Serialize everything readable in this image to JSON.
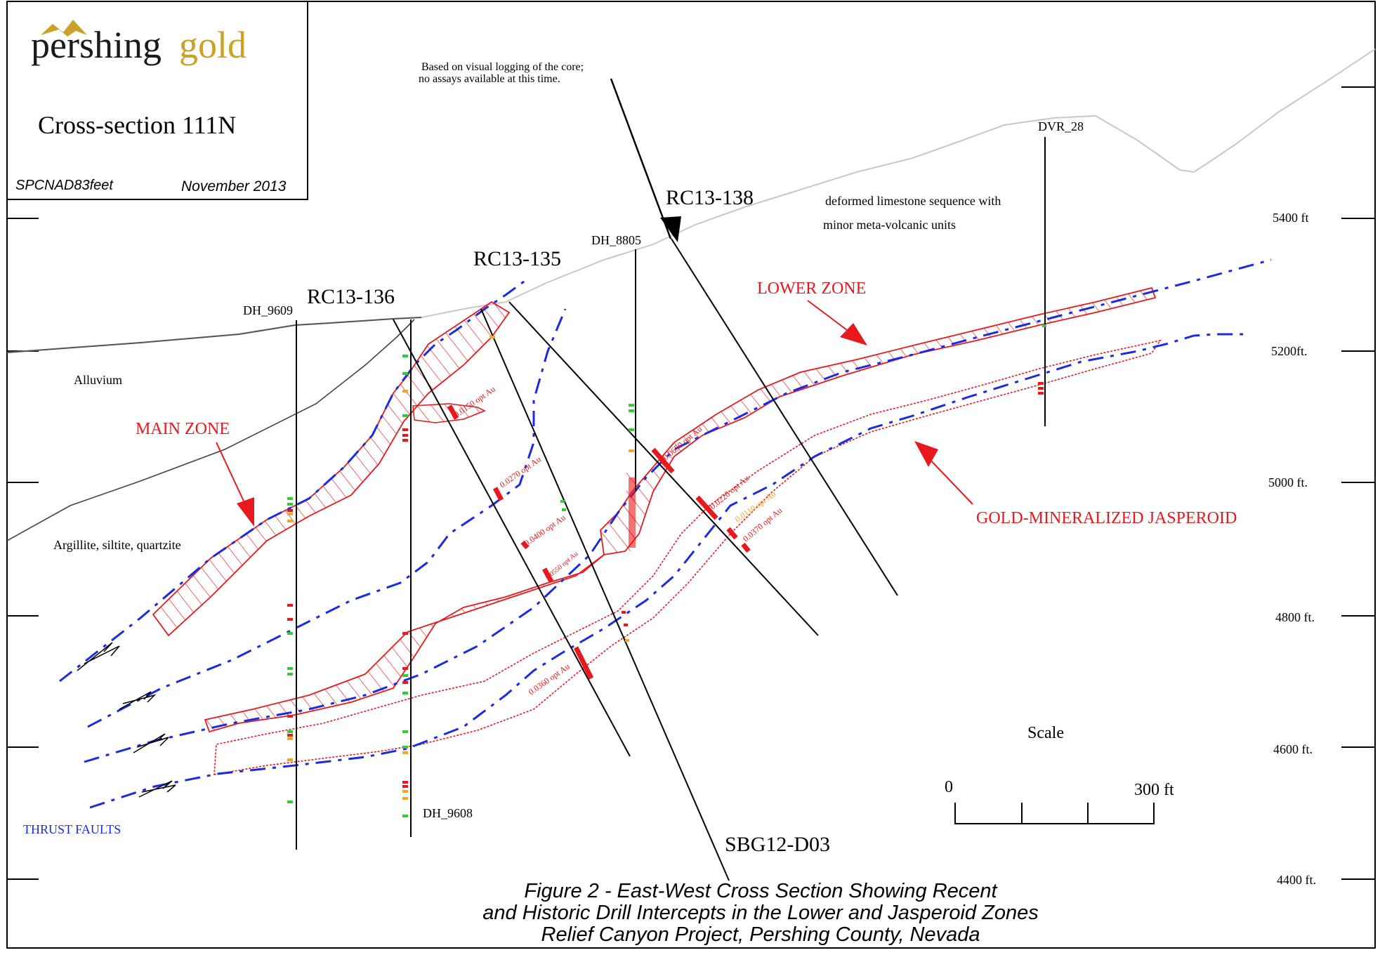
{
  "logo": {
    "word1": "pershing",
    "word2": "gold",
    "brand_color": "#C9A227"
  },
  "title_block": {
    "title": "Cross-section 111N",
    "coordinate_system": "SPCNAD83feet",
    "date": "November 2013"
  },
  "notes": {
    "logging_line1": "Based on visual logging of the core;",
    "logging_line2": "no assays available at this time.",
    "geology_line1": "deformed limestone sequence with",
    "geology_line2": "minor meta-volcanic units"
  },
  "units": {
    "alluvium": "Alluvium",
    "argillite": "Argillite, siltite, quartzite"
  },
  "zones": {
    "main": "MAIN ZONE",
    "lower": "LOWER ZONE",
    "jasperoid": "GOLD-MINERALIZED JASPEROID",
    "thrust": "THRUST FAULTS"
  },
  "drill_holes": {
    "dh_9609": "DH_9609",
    "dh_9608": "DH_9608",
    "dh_8805": "DH_8805",
    "dvr_28": "DVR_28",
    "rc13_136": "RC13-136",
    "rc13_135": "RC13-135",
    "rc13_138": "RC13-138",
    "sbg12_d03": "SBG12-D03"
  },
  "intercepts": {
    "a": "0.0150 opt Au",
    "b": "0.0270 opt Au",
    "c": "0.0400 opt Au",
    "d": "0.0550 opt Au",
    "e": "0.0220 opt Au",
    "f": "0.0110 opt Au",
    "g": "0.0370 opt Au",
    "h": "0.0360 opt Au",
    "i": "0.0650 opt Au"
  },
  "elevations": {
    "e5400": "5400 ft",
    "e5200": "5200ft.",
    "e5000": "5000 ft.",
    "e4800": "4800 ft.",
    "e4600": "4600 ft.",
    "e4400": "4400 ft."
  },
  "scale": {
    "title": "Scale",
    "min": "0",
    "max": "300 ft"
  },
  "caption": {
    "line1": "Figure 2 - East-West Cross Section Showing Recent",
    "line2": "and Historic Drill Intercepts in the Lower and Jasperoid Zones",
    "line3": "Relief Canyon Project, Pershing County, Nevada"
  },
  "colors": {
    "zone_red": "#E8191C",
    "fault_blue": "#1A2BE0",
    "assay_green": "#33CC33",
    "assay_orange": "#F5A623",
    "topo_grey": "#C8C8C8"
  }
}
